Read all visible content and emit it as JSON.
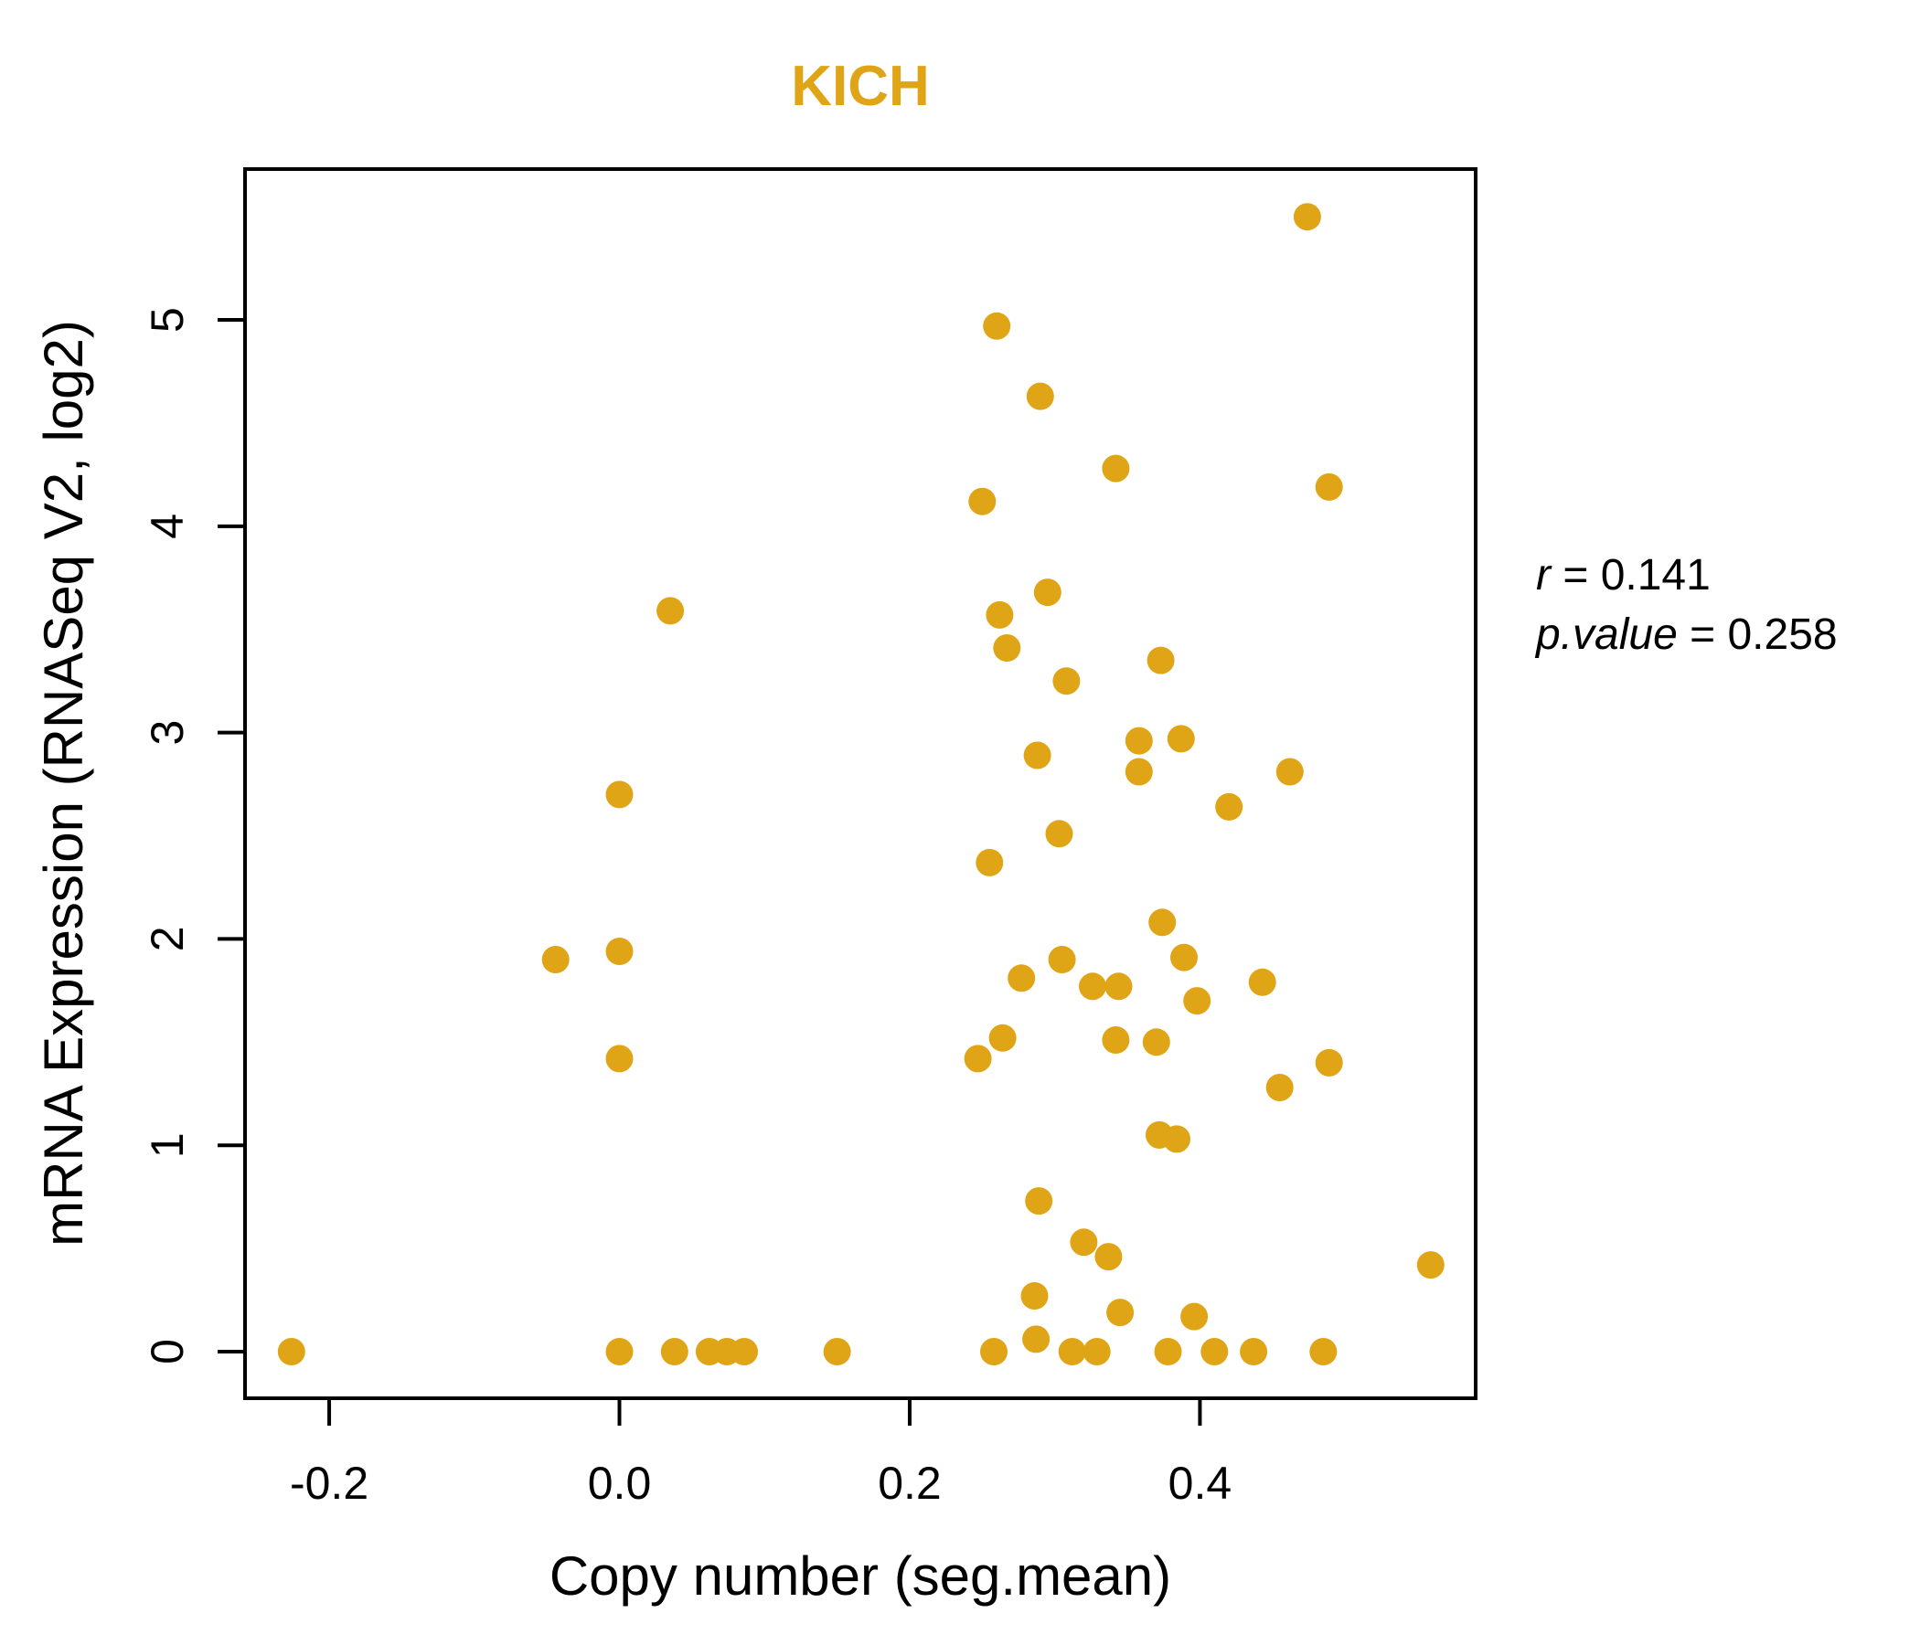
{
  "title": "KICH",
  "accent_color": "#E0A417",
  "annotation": {
    "lines": [
      {
        "label": "r",
        "value": "0.141"
      },
      {
        "label": "p.value",
        "value": "0.258"
      }
    ]
  },
  "chart_data": {
    "type": "scatter",
    "title": "KICH",
    "xlabel": "Copy number (seg.mean)",
    "ylabel": "mRNA Expression (RNASeq V2, log2)",
    "xlim": [
      -0.258,
      0.59
    ],
    "ylim": [
      -0.226,
      5.731
    ],
    "grid": false,
    "legend": null,
    "x_ticks": {
      "values": [
        -0.2,
        0.0,
        0.2,
        0.4
      ],
      "labels": [
        "-0.2",
        "0.0",
        "0.2",
        "0.4"
      ]
    },
    "y_ticks": {
      "values": [
        0,
        1,
        2,
        3,
        4,
        5
      ],
      "labels": [
        "0",
        "1",
        "2",
        "3",
        "4",
        "5"
      ]
    },
    "point_color": "#E0A417",
    "point_radius_px": 15,
    "annotations": [
      "r = 0.141",
      "p.value = 0.258"
    ],
    "points": [
      [
        -0.226,
        0.0
      ],
      [
        -0.044,
        1.9
      ],
      [
        0.0,
        2.7
      ],
      [
        0.0,
        1.94
      ],
      [
        0.0,
        1.42
      ],
      [
        0.0,
        0.0
      ],
      [
        0.035,
        3.59
      ],
      [
        0.038,
        0.0
      ],
      [
        0.062,
        0.0
      ],
      [
        0.074,
        0.0
      ],
      [
        0.086,
        0.0
      ],
      [
        0.15,
        0.0
      ],
      [
        0.25,
        4.12
      ],
      [
        0.247,
        1.42
      ],
      [
        0.255,
        2.37
      ],
      [
        0.258,
        0.0
      ],
      [
        0.26,
        4.97
      ],
      [
        0.262,
        3.57
      ],
      [
        0.264,
        1.52
      ],
      [
        0.267,
        3.41
      ],
      [
        0.277,
        1.81
      ],
      [
        0.286,
        0.27
      ],
      [
        0.287,
        0.06
      ],
      [
        0.288,
        2.89
      ],
      [
        0.289,
        0.73
      ],
      [
        0.29,
        4.63
      ],
      [
        0.295,
        3.68
      ],
      [
        0.303,
        2.51
      ],
      [
        0.305,
        1.9
      ],
      [
        0.308,
        3.25
      ],
      [
        0.312,
        0.0
      ],
      [
        0.32,
        0.53
      ],
      [
        0.326,
        1.77
      ],
      [
        0.329,
        0.0
      ],
      [
        0.337,
        0.46
      ],
      [
        0.342,
        4.28
      ],
      [
        0.344,
        1.77
      ],
      [
        0.342,
        1.51
      ],
      [
        0.345,
        0.19
      ],
      [
        0.358,
        2.96
      ],
      [
        0.358,
        2.81
      ],
      [
        0.37,
        1.5
      ],
      [
        0.372,
        1.05
      ],
      [
        0.373,
        3.35
      ],
      [
        0.374,
        2.08
      ],
      [
        0.378,
        0.0
      ],
      [
        0.384,
        1.03
      ],
      [
        0.387,
        2.97
      ],
      [
        0.389,
        1.91
      ],
      [
        0.396,
        0.17
      ],
      [
        0.398,
        1.7
      ],
      [
        0.41,
        0.0
      ],
      [
        0.42,
        2.64
      ],
      [
        0.437,
        0.0
      ],
      [
        0.443,
        1.79
      ],
      [
        0.455,
        1.28
      ],
      [
        0.462,
        2.81
      ],
      [
        0.474,
        5.5
      ],
      [
        0.485,
        0.0
      ],
      [
        0.489,
        4.19
      ],
      [
        0.489,
        1.4
      ],
      [
        0.559,
        0.42
      ]
    ]
  }
}
